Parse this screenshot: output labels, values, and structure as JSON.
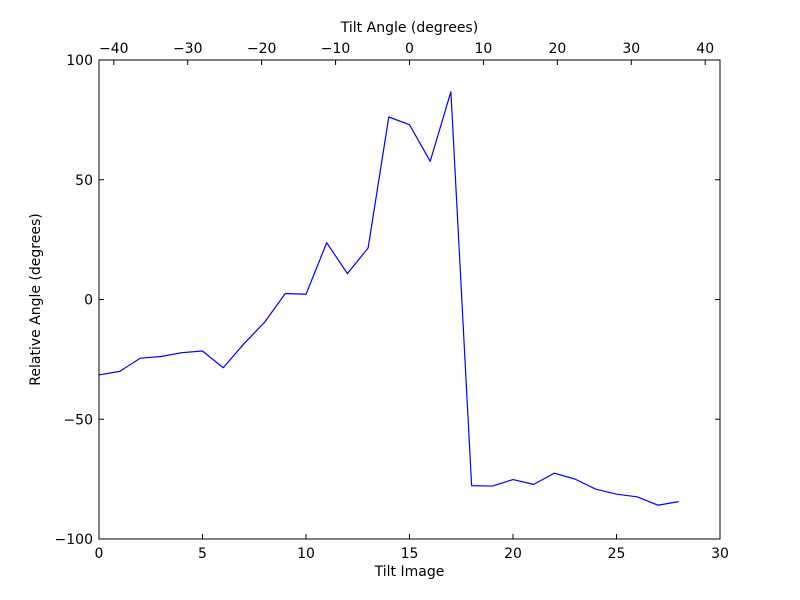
{
  "chart_data": {
    "type": "line",
    "title": "",
    "xlabel": "Tilt Image",
    "ylabel": "Relative Angle (degrees)",
    "x2label": "Tilt Angle (degrees)",
    "xlim": [
      0,
      30
    ],
    "ylim": [
      -100,
      100
    ],
    "x2lim": [
      -42,
      42
    ],
    "xticks": [
      0,
      5,
      10,
      15,
      20,
      25,
      30
    ],
    "yticks": [
      -100,
      -50,
      0,
      50,
      100
    ],
    "x2ticks": [
      -40,
      -30,
      -20,
      -10,
      0,
      10,
      20,
      30,
      40
    ],
    "xtick_labels": [
      "0",
      "5",
      "10",
      "15",
      "20",
      "25",
      "30"
    ],
    "ytick_labels": [
      "−100",
      "−50",
      "0",
      "50",
      "100"
    ],
    "x2tick_labels": [
      "−40",
      "−30",
      "−20",
      "−10",
      "0",
      "10",
      "20",
      "30",
      "40"
    ],
    "grid": false,
    "series": [
      {
        "color": "#0000ff",
        "x": [
          0,
          1,
          2,
          3,
          4,
          5,
          6,
          7,
          8,
          9,
          10,
          11,
          12,
          13,
          14,
          15,
          16,
          17,
          18,
          19,
          20,
          21,
          22,
          23,
          24,
          25,
          26,
          27,
          28
        ],
        "y": [
          -31.5,
          -30,
          -24.5,
          -23.8,
          -22.2,
          -21.5,
          -28.5,
          -18.5,
          -9.5,
          2.5,
          2.2,
          23.7,
          10.8,
          21.5,
          76.2,
          73,
          57.7,
          86.7,
          -77.7,
          -77.9,
          -75.2,
          -77.2,
          -72.5,
          -75,
          -79.2,
          -81.3,
          -82.4,
          -85.9,
          -84.4
        ]
      }
    ]
  }
}
